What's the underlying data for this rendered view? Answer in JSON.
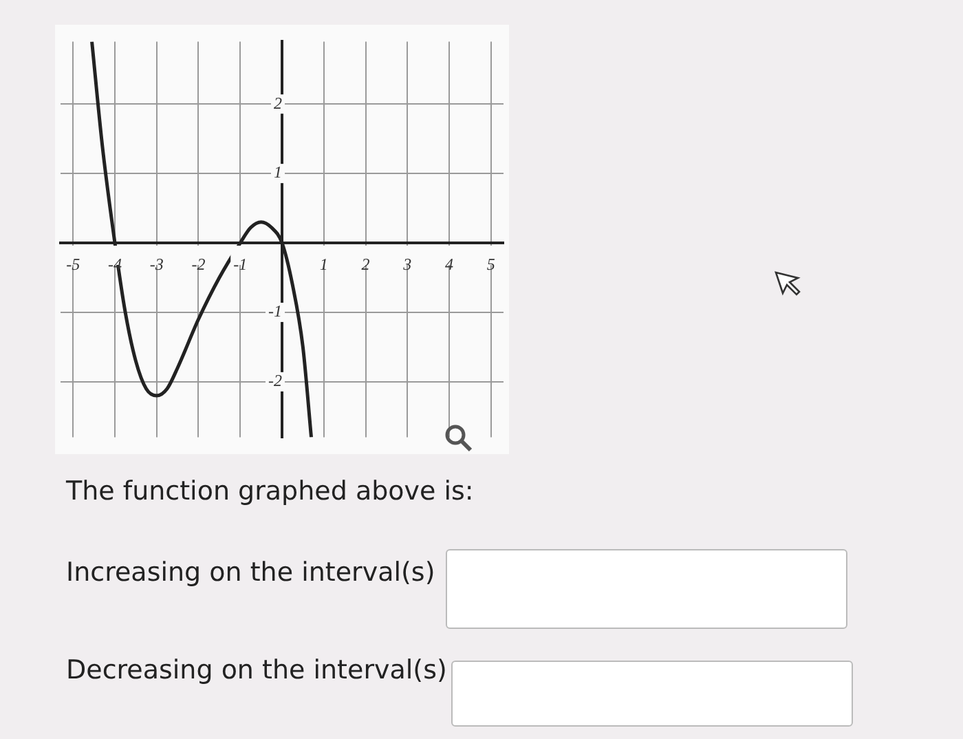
{
  "chart_data": {
    "type": "line",
    "xlim": [
      -5.3,
      5.3
    ],
    "ylim": [
      -2.8,
      2.9
    ],
    "xticks": [
      -5,
      -4,
      -3,
      -2,
      -1,
      {
        "value": 0,
        "label": null
      },
      1,
      2,
      3,
      4,
      5
    ],
    "yticks": [
      -2,
      -1,
      {
        "value": 0,
        "label": null
      },
      1,
      2
    ],
    "grid": true,
    "legend": false,
    "marker": "none",
    "series": [
      {
        "color": "#222222",
        "x": [
          -4.55,
          -4.3,
          -4,
          -3.75,
          -3.5,
          -3.25,
          -3,
          -2.75,
          -2.5,
          -2,
          -1.5,
          -1,
          -0.75,
          -0.5,
          -0.25,
          0,
          0.25,
          0.5,
          0.7
        ],
        "values": [
          2.9,
          1.4,
          0,
          -1,
          -1.7,
          -2.1,
          -2.2,
          -2.1,
          -1.8,
          -1.1,
          -0.5,
          0,
          0.22,
          0.3,
          0.22,
          0,
          -0.6,
          -1.5,
          -2.8
        ]
      }
    ],
    "annotations": [
      "The function graphed above is:",
      "Increasing on the interval(s)",
      "Decreasing on the interval(s)"
    ]
  }
}
